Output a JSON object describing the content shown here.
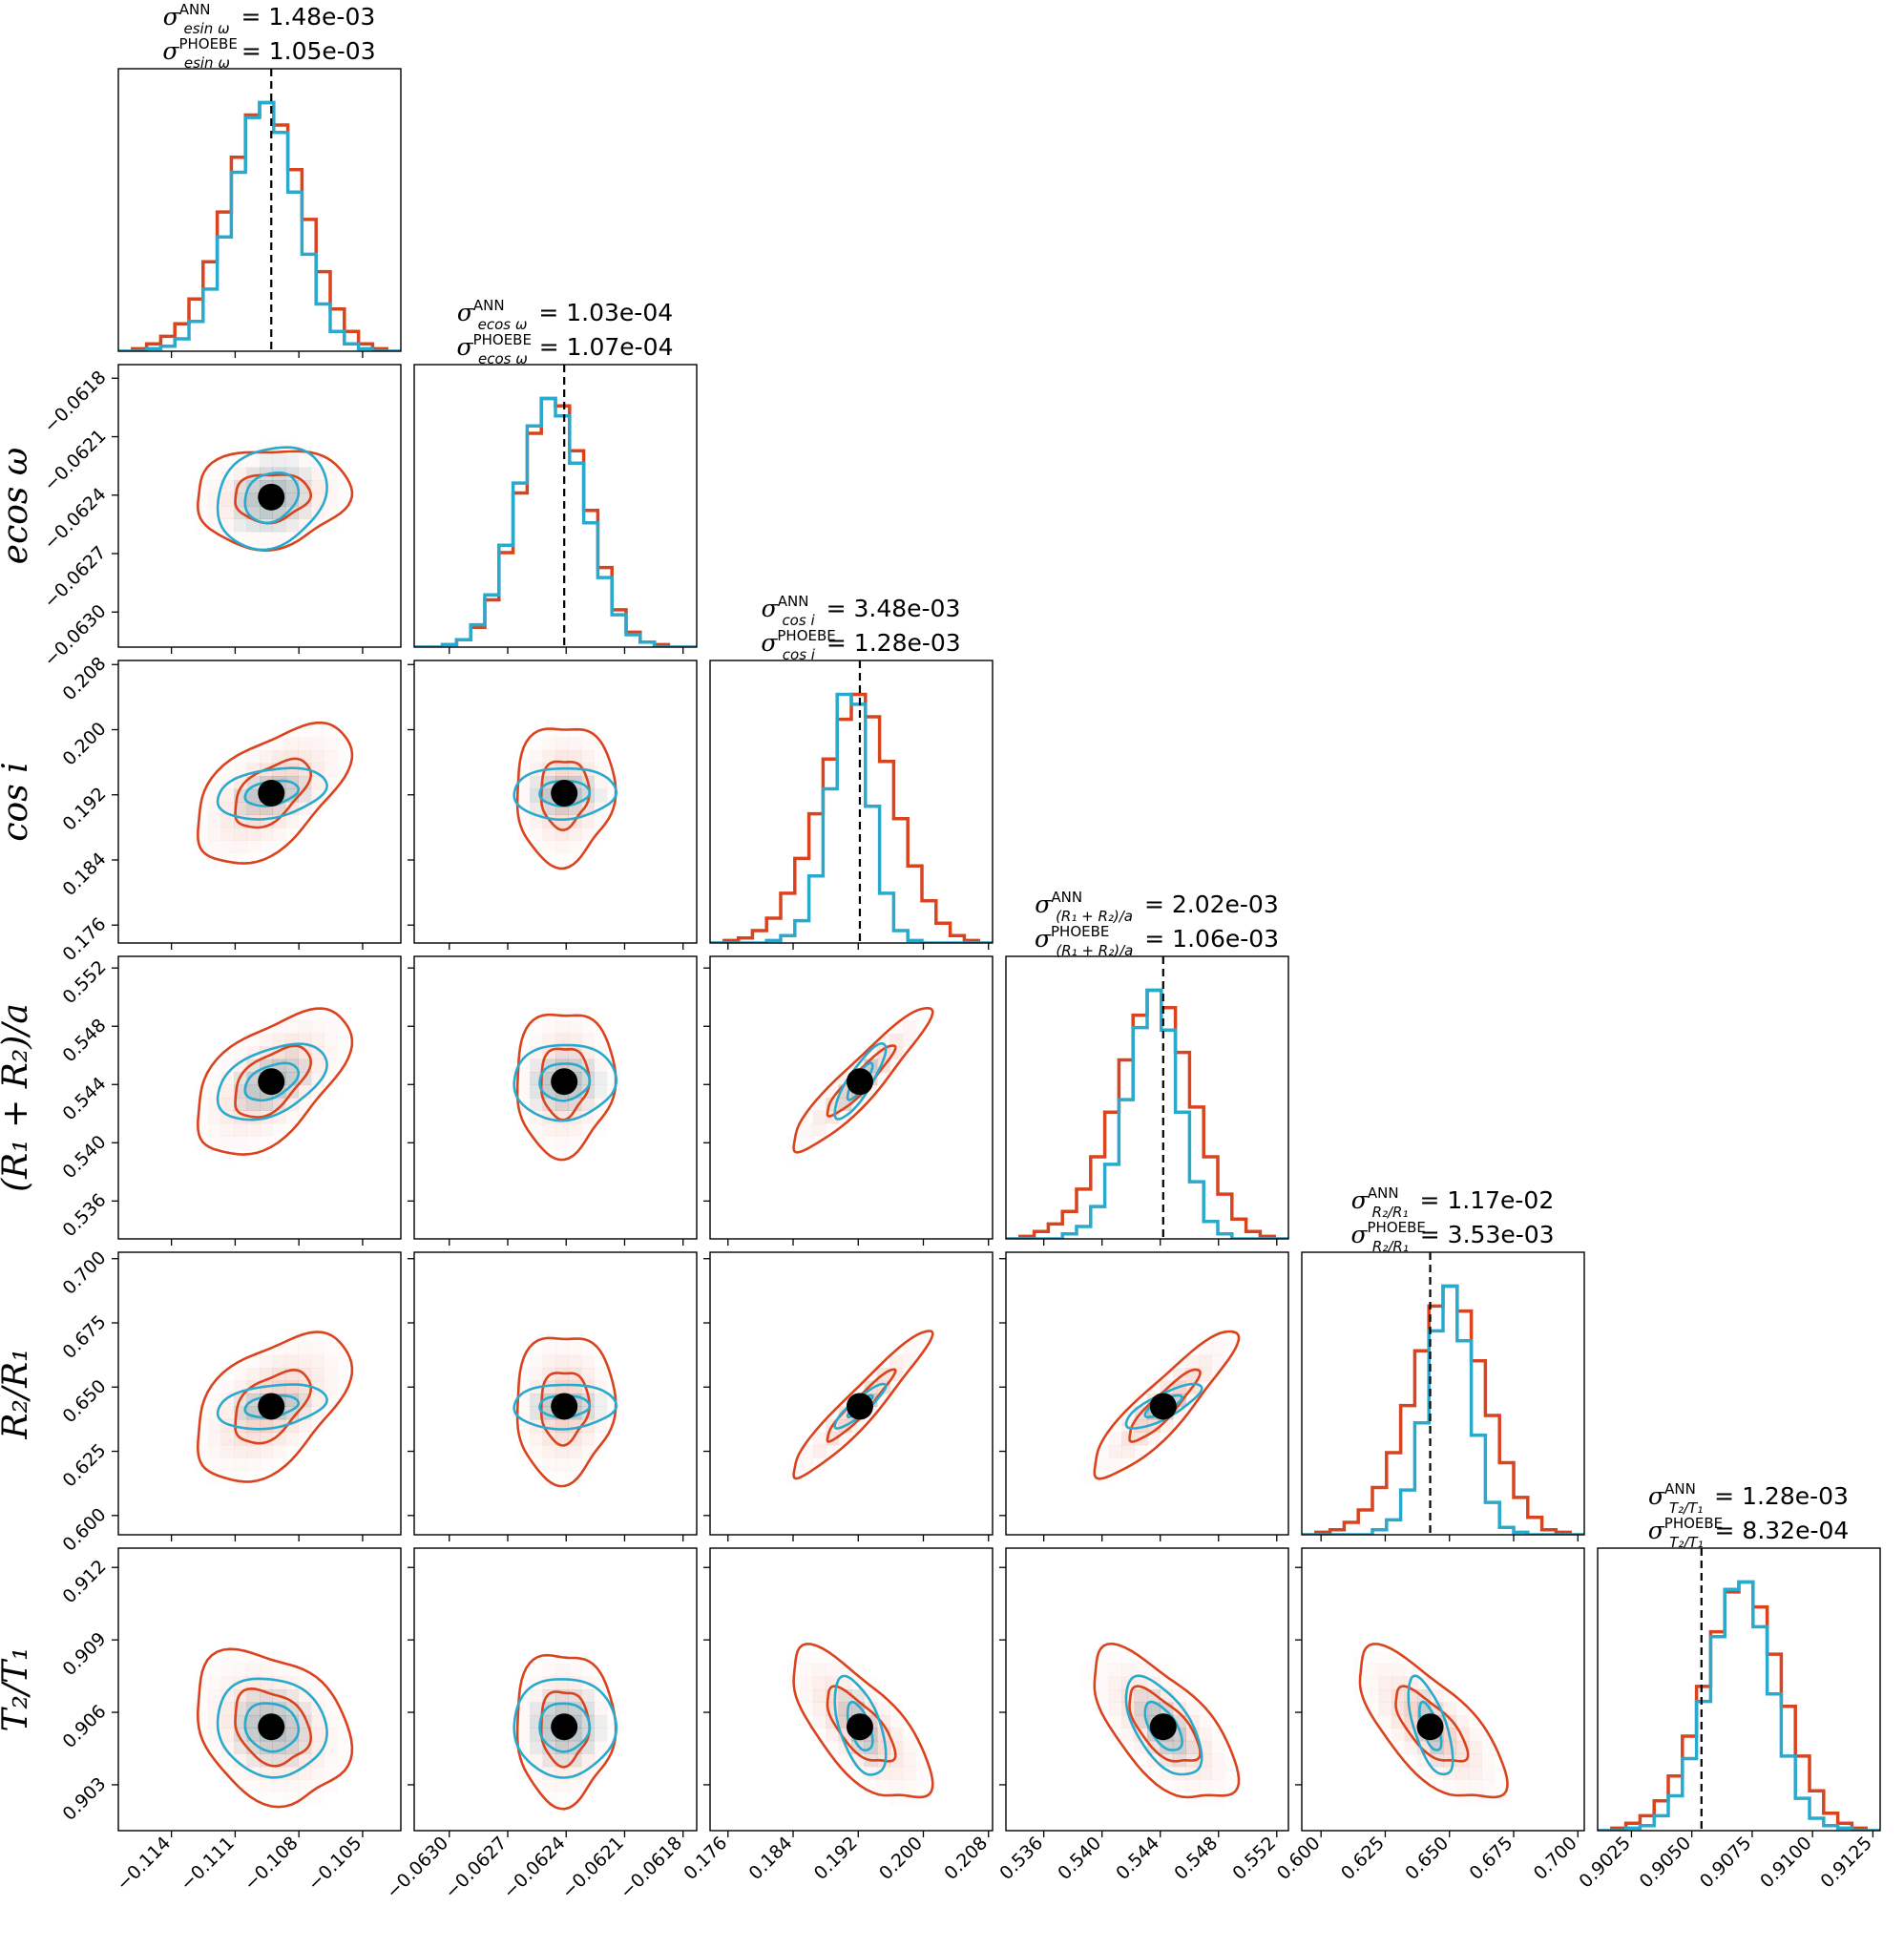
{
  "chart_data": {
    "type": "corner",
    "colors": {
      "ann": "#d9431e",
      "phoebe": "#29aacc",
      "truth": "#000000"
    },
    "parameters": [
      {
        "id": "esinw",
        "xlabel": "esin ω",
        "ylabel": "esin ω",
        "truth": -0.1093,
        "range": [
          -0.1165,
          -0.1032
        ],
        "ticks": [
          -0.114,
          -0.111,
          -0.108,
          -0.105
        ],
        "tick_labels": [
          "−0.114",
          "−0.111",
          "−0.108",
          "−0.105"
        ],
        "sigma_ann": "1.48e-03",
        "sigma_phoebe": "1.05e-03",
        "sigma_sub": "esin ω",
        "hist_ann": [
          0,
          0.01,
          0.03,
          0.06,
          0.11,
          0.21,
          0.36,
          0.56,
          0.78,
          0.95,
          1.0,
          0.91,
          0.73,
          0.53,
          0.32,
          0.17,
          0.08,
          0.03,
          0.01,
          0
        ],
        "hist_phoebe": [
          0,
          0,
          0.01,
          0.02,
          0.05,
          0.12,
          0.25,
          0.46,
          0.72,
          0.94,
          1.0,
          0.88,
          0.64,
          0.39,
          0.19,
          0.08,
          0.03,
          0.01,
          0,
          0
        ],
        "sd_ann": 0.00148,
        "sd_phoebe": 0.00105
      },
      {
        "id": "ecosw",
        "xlabel": "ecos ω",
        "ylabel": "ecos ω",
        "truth": -0.06241,
        "range": [
          -0.06318,
          -0.06173
        ],
        "ticks": [
          -0.063,
          -0.0627,
          -0.0624,
          -0.0621,
          -0.0618
        ],
        "tick_labels": [
          "−0.0630",
          "−0.0627",
          "−0.0624",
          "−0.0621",
          "−0.0618"
        ],
        "sigma_ann": "1.03e-04",
        "sigma_phoebe": "1.07e-04",
        "sigma_sub": "ecos ω",
        "hist_ann": [
          0,
          0,
          0.01,
          0.03,
          0.08,
          0.19,
          0.38,
          0.62,
          0.86,
          1.0,
          0.97,
          0.79,
          0.55,
          0.32,
          0.15,
          0.06,
          0.02,
          0.01,
          0,
          0
        ],
        "hist_phoebe": [
          0,
          0,
          0.01,
          0.03,
          0.09,
          0.21,
          0.41,
          0.66,
          0.89,
          1.0,
          0.93,
          0.74,
          0.5,
          0.28,
          0.13,
          0.05,
          0.02,
          0,
          0,
          0
        ],
        "sd_ann": 0.000103,
        "sd_phoebe": 0.000107
      },
      {
        "id": "cosi",
        "xlabel": "cos i",
        "ylabel": "cos i",
        "truth": 0.1922,
        "range": [
          0.1738,
          0.2085
        ],
        "ticks": [
          0.176,
          0.184,
          0.192,
          0.2,
          0.208
        ],
        "tick_labels": [
          "0.176",
          "0.184",
          "0.192",
          "0.200",
          "0.208"
        ],
        "sigma_ann": "3.48e-03",
        "sigma_phoebe": "1.28e-03",
        "sigma_sub": "cos i",
        "hist_ann": [
          0,
          0.01,
          0.02,
          0.05,
          0.1,
          0.2,
          0.34,
          0.52,
          0.74,
          0.9,
          1.0,
          0.91,
          0.73,
          0.5,
          0.31,
          0.17,
          0.08,
          0.03,
          0.01,
          0
        ],
        "hist_phoebe": [
          0,
          0,
          0,
          0,
          0.01,
          0.03,
          0.09,
          0.27,
          0.62,
          1.0,
          0.96,
          0.55,
          0.2,
          0.05,
          0.01,
          0,
          0,
          0,
          0,
          0
        ],
        "sd_ann": 0.00348,
        "sd_phoebe": 0.00128
      },
      {
        "id": "r1r2a",
        "xlabel": "(R₁ + R₂)/a",
        "ylabel": "(R₁ + R₂)/a",
        "truth": 0.5442,
        "range": [
          0.5334,
          0.5528
        ],
        "ticks": [
          0.536,
          0.54,
          0.544,
          0.548,
          0.552
        ],
        "tick_labels": [
          "0.536",
          "0.540",
          "0.544",
          "0.548",
          "0.552"
        ],
        "sigma_ann": "2.02e-03",
        "sigma_phoebe": "1.06e-03",
        "sigma_sub": "(R₁ + R₂)/a",
        "hist_ann": [
          0,
          0.01,
          0.03,
          0.06,
          0.11,
          0.2,
          0.33,
          0.51,
          0.72,
          0.9,
          1.0,
          0.93,
          0.75,
          0.53,
          0.33,
          0.18,
          0.08,
          0.03,
          0.01,
          0
        ],
        "hist_phoebe": [
          0,
          0,
          0,
          0,
          0.02,
          0.05,
          0.13,
          0.3,
          0.56,
          0.85,
          1.0,
          0.84,
          0.51,
          0.23,
          0.07,
          0.02,
          0,
          0,
          0,
          0
        ],
        "sd_ann": 0.00202,
        "sd_phoebe": 0.00106
      },
      {
        "id": "r2r1",
        "xlabel": "R₂/R₁",
        "ylabel": "R₂/R₁",
        "truth": 0.6425,
        "range": [
          0.5925,
          0.7025
        ],
        "ticks": [
          0.6,
          0.625,
          0.65,
          0.675,
          0.7
        ],
        "tick_labels": [
          "0.600",
          "0.625",
          "0.650",
          "0.675",
          "0.700"
        ],
        "sigma_ann": "1.17e-02",
        "sigma_phoebe": "3.53e-03",
        "sigma_sub": "R₂/R₁",
        "hist_ann": [
          0,
          0.01,
          0.02,
          0.05,
          0.1,
          0.19,
          0.33,
          0.52,
          0.74,
          0.92,
          1.0,
          0.9,
          0.7,
          0.48,
          0.29,
          0.15,
          0.07,
          0.02,
          0.01,
          0
        ],
        "hist_phoebe": [
          0,
          0,
          0,
          0,
          0,
          0.02,
          0.06,
          0.18,
          0.45,
          0.82,
          1.0,
          0.78,
          0.4,
          0.13,
          0.03,
          0.01,
          0,
          0,
          0,
          0
        ],
        "sd_ann": 0.0117,
        "sd_phoebe": 0.00353
      },
      {
        "id": "t2t1",
        "xlabel": "T₂/T₁",
        "ylabel": "T₂/T₁",
        "truth": 0.9054,
        "range": [
          0.9011,
          0.9128
        ],
        "ticks": [
          0.9025,
          0.905,
          0.9075,
          0.91,
          0.9125
        ],
        "tick_labels": [
          "0.9025",
          "0.9050",
          "0.9075",
          "0.9100",
          "0.9125"
        ],
        "y_ticks": [
          0.903,
          0.906,
          0.909,
          0.912
        ],
        "y_tick_labels": [
          "0.903",
          "0.906",
          "0.909",
          "0.912"
        ],
        "sigma_ann": "1.28e-03",
        "sigma_phoebe": "8.32e-04",
        "sigma_sub": "T₂/T₁",
        "hist_ann": [
          0,
          0.01,
          0.03,
          0.06,
          0.12,
          0.22,
          0.38,
          0.58,
          0.8,
          0.96,
          1.0,
          0.9,
          0.71,
          0.5,
          0.3,
          0.16,
          0.07,
          0.03,
          0.01,
          0
        ],
        "hist_phoebe": [
          0,
          0,
          0.01,
          0.02,
          0.06,
          0.14,
          0.29,
          0.52,
          0.78,
          0.97,
          1.0,
          0.82,
          0.55,
          0.3,
          0.13,
          0.05,
          0.02,
          0.01,
          0,
          0
        ],
        "sd_ann": 0.00128,
        "sd_phoebe": 0.000832
      }
    ],
    "correlations_ann": {
      "1,0": 0.1,
      "2,0": 0.55,
      "2,1": 0.05,
      "3,0": 0.55,
      "3,1": 0.05,
      "3,2": 0.93,
      "4,0": 0.5,
      "4,1": 0.05,
      "4,2": 0.95,
      "4,3": 0.9,
      "5,0": -0.25,
      "5,1": 0.0,
      "5,2": -0.7,
      "5,3": -0.65,
      "5,4": -0.7
    },
    "correlations_phoebe": {
      "1,0": 0.2,
      "2,0": 0.3,
      "2,1": 0.05,
      "3,0": 0.45,
      "3,1": 0.05,
      "3,2": 0.85,
      "4,0": 0.3,
      "4,1": 0.05,
      "4,2": 0.9,
      "4,3": 0.8,
      "5,0": -0.1,
      "5,1": 0.0,
      "5,2": -0.55,
      "5,3": -0.6,
      "5,4": -0.65
    }
  }
}
